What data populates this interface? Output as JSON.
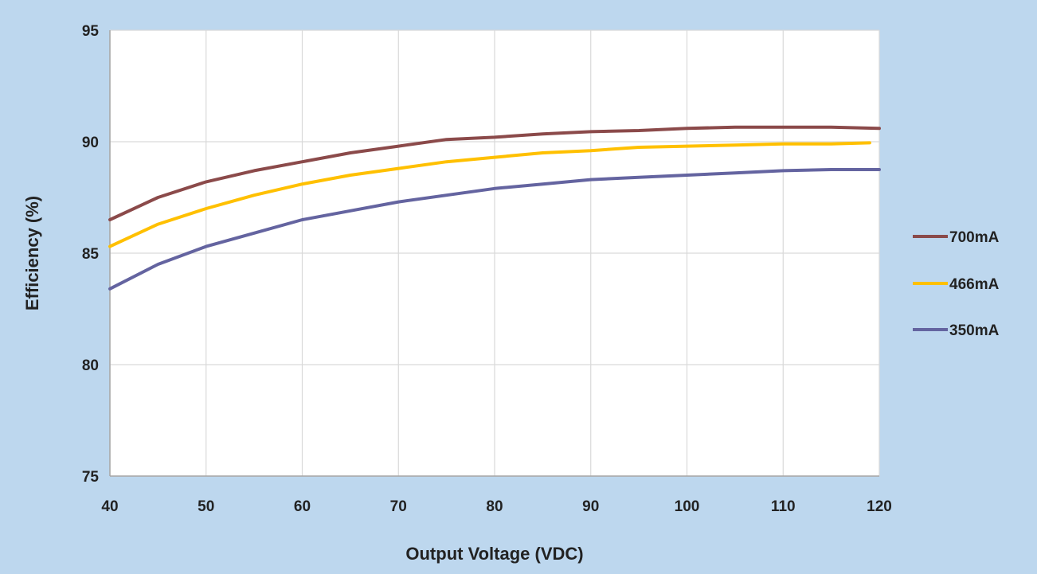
{
  "chart_data": {
    "type": "line",
    "title": "",
    "xlabel": "Output Voltage (VDC)",
    "ylabel": "Efficiency (%)",
    "xlim": [
      40,
      120
    ],
    "ylim": [
      75,
      95
    ],
    "x_ticks": [
      40,
      50,
      60,
      70,
      80,
      90,
      100,
      110,
      120
    ],
    "y_ticks": [
      75,
      80,
      85,
      90,
      95
    ],
    "grid": true,
    "legend_position": "right",
    "colors": {
      "background": "#bdd7ee",
      "plot_area": "#ffffff",
      "grid": "#d9d9d9",
      "axis": "#a6a6a6"
    },
    "series": [
      {
        "name": "700mA",
        "color": "#8b4a4a",
        "x": [
          40,
          45,
          50,
          55,
          60,
          65,
          70,
          75,
          80,
          85,
          90,
          95,
          100,
          105,
          110,
          115,
          120
        ],
        "y": [
          86.5,
          87.5,
          88.2,
          88.7,
          89.1,
          89.5,
          89.8,
          90.1,
          90.2,
          90.35,
          90.45,
          90.5,
          90.6,
          90.65,
          90.65,
          90.65,
          90.6
        ]
      },
      {
        "name": "466mA",
        "color": "#ffc000",
        "x": [
          40,
          45,
          50,
          55,
          60,
          65,
          70,
          75,
          80,
          85,
          90,
          95,
          100,
          105,
          110,
          115,
          119
        ],
        "y": [
          85.3,
          86.3,
          87.0,
          87.6,
          88.1,
          88.5,
          88.8,
          89.1,
          89.3,
          89.5,
          89.6,
          89.75,
          89.8,
          89.85,
          89.9,
          89.9,
          89.95
        ]
      },
      {
        "name": "350mA",
        "color": "#6464a0",
        "x": [
          40,
          45,
          50,
          55,
          60,
          65,
          70,
          75,
          80,
          85,
          90,
          95,
          100,
          105,
          110,
          115,
          120
        ],
        "y": [
          83.4,
          84.5,
          85.3,
          85.9,
          86.5,
          86.9,
          87.3,
          87.6,
          87.9,
          88.1,
          88.3,
          88.4,
          88.5,
          88.6,
          88.7,
          88.75,
          88.75
        ]
      }
    ]
  }
}
